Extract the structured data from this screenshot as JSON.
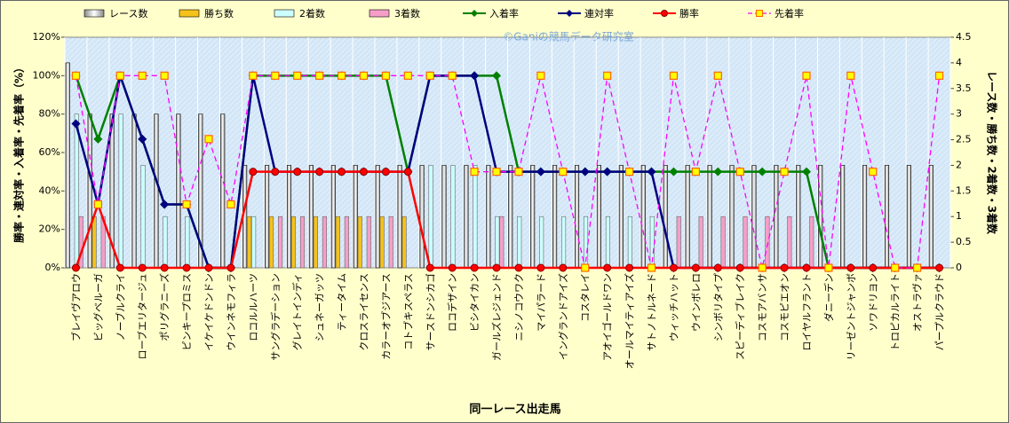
{
  "chart_data": {
    "type": "combo",
    "watermark": "©Ganiの競馬データ研究室",
    "x_label": "同一レース出走馬",
    "y_label": "勝率・連対率・入着率・先着率（%）",
    "y2_label": "レース数・勝ち数・2着数・3着数",
    "categories": [
      "ブレイヴアロウ",
      "ビッグベルーガ",
      "ノーブルクライ",
      "ローブエリタージュ",
      "ポリグラニーズ",
      "ピンキープロミス",
      "イケイケドンドン",
      "ウインネモフィラ",
      "ロコルルハーツ",
      "サングラデーション",
      "グレイトインディ",
      "シュネーガッツ",
      "ティータイム",
      "クロスライセンス",
      "カラーオブジアース",
      "コトブキスペラス",
      "サースドンシカゴ",
      "ロコデザイン",
      "ビシタイカン",
      "ガールズレジェンド",
      "ニシノコウワク",
      "マイパラード",
      "イングランドアイズ",
      "コスタレイ",
      "アオイゴールドワン",
      "オールマイティアイズ",
      "サトノトルネード",
      "ウィッチハット",
      "ウインボレロ",
      "シンボリタイプ",
      "スピーディブレイク",
      "コスモアバンサ",
      "コスモピエオン",
      "ロイヤルフラント",
      "ダニーデン",
      "リーゼントジャンボ",
      "ソワドリヨン",
      "トロピカルライト",
      "オストラヴァ",
      "パープルクラウド"
    ],
    "ylim": [
      0,
      120
    ],
    "yticks": [
      {
        "value": 0,
        "label": "0%"
      },
      {
        "value": 20,
        "label": "20%"
      },
      {
        "value": 40,
        "label": "40%"
      },
      {
        "value": 60,
        "label": "60%"
      },
      {
        "value": 80,
        "label": "80%"
      },
      {
        "value": 100,
        "label": "100%"
      },
      {
        "value": 120,
        "label": "120%"
      }
    ],
    "y2lim": [
      0,
      4.5
    ],
    "y2ticks": [
      0,
      0.5,
      1,
      1.5,
      2,
      2.5,
      3,
      3.5,
      4,
      4.5
    ],
    "grid": true,
    "series": [
      {
        "name": "レース数",
        "kind": "bar",
        "axis": "y2",
        "color": "#ffffff",
        "values": [
          4,
          3,
          3,
          3,
          3,
          3,
          3,
          3,
          2,
          2,
          2,
          2,
          2,
          2,
          2,
          2,
          2,
          2,
          2,
          2,
          2,
          2,
          2,
          2,
          2,
          2,
          2,
          2,
          2,
          2,
          2,
          2,
          2,
          2,
          2,
          2,
          2,
          2,
          2,
          2
        ]
      },
      {
        "name": "勝ち数",
        "kind": "bar",
        "axis": "y2",
        "color": "#f5c21b",
        "values": [
          0,
          1,
          0,
          0,
          0,
          0,
          0,
          0,
          1,
          1,
          1,
          1,
          1,
          1,
          1,
          1,
          0,
          0,
          0,
          0,
          0,
          0,
          0,
          0,
          0,
          0,
          0,
          0,
          0,
          0,
          0,
          0,
          0,
          0,
          0,
          0,
          0,
          0,
          0,
          0
        ]
      },
      {
        "name": "2着数",
        "kind": "bar",
        "axis": "y2",
        "color": "#ccffff",
        "values": [
          3,
          0,
          3,
          2,
          1,
          1,
          0,
          0,
          1,
          0,
          0,
          0,
          0,
          0,
          0,
          0,
          2,
          2,
          2,
          1,
          1,
          1,
          1,
          1,
          1,
          1,
          1,
          0,
          0,
          0,
          0,
          0,
          0,
          0,
          0,
          0,
          0,
          0,
          0,
          0
        ]
      },
      {
        "name": "3着数",
        "kind": "bar",
        "axis": "y2",
        "color": "#f59fc8",
        "values": [
          1,
          1,
          0,
          0,
          0,
          0,
          0,
          0,
          0,
          1,
          1,
          1,
          1,
          1,
          1,
          0,
          0,
          0,
          0,
          1,
          0,
          0,
          0,
          0,
          0,
          0,
          0,
          1,
          1,
          1,
          1,
          1,
          1,
          1,
          0,
          0,
          0,
          0,
          0,
          0
        ]
      },
      {
        "name": "入着率",
        "kind": "line",
        "marker": "diamond",
        "color": "#008000",
        "values": [
          100,
          67,
          100,
          67,
          33,
          33,
          0,
          0,
          100,
          100,
          100,
          100,
          100,
          100,
          100,
          50,
          100,
          100,
          100,
          100,
          50,
          50,
          50,
          50,
          50,
          50,
          50,
          50,
          50,
          50,
          50,
          50,
          50,
          50,
          0,
          0,
          0,
          0,
          0,
          0
        ]
      },
      {
        "name": "連対率",
        "kind": "line",
        "marker": "diamond",
        "color": "#000080",
        "values": [
          75,
          33,
          100,
          67,
          33,
          33,
          0,
          0,
          100,
          50,
          50,
          50,
          50,
          50,
          50,
          50,
          100,
          100,
          100,
          50,
          50,
          50,
          50,
          50,
          50,
          50,
          50,
          0,
          0,
          0,
          0,
          0,
          0,
          0,
          0,
          0,
          0,
          0,
          0,
          0
        ]
      },
      {
        "name": "勝率",
        "kind": "line",
        "marker": "circle",
        "color": "#ff0000",
        "values": [
          0,
          33,
          0,
          0,
          0,
          0,
          0,
          0,
          50,
          50,
          50,
          50,
          50,
          50,
          50,
          50,
          0,
          0,
          0,
          0,
          0,
          0,
          0,
          0,
          0,
          0,
          0,
          0,
          0,
          0,
          0,
          0,
          0,
          0,
          0,
          0,
          0,
          0,
          0,
          0
        ]
      },
      {
        "name": "先着率",
        "kind": "line",
        "marker": "square",
        "dash": true,
        "color": "#ff00ff",
        "values": [
          100,
          33,
          100,
          100,
          100,
          33,
          67,
          33,
          100,
          100,
          100,
          100,
          100,
          100,
          100,
          100,
          100,
          100,
          50,
          50,
          50,
          100,
          50,
          0,
          100,
          50,
          0,
          100,
          50,
          100,
          50,
          0,
          50,
          100,
          0,
          100,
          50,
          0,
          0,
          100
        ]
      }
    ]
  }
}
